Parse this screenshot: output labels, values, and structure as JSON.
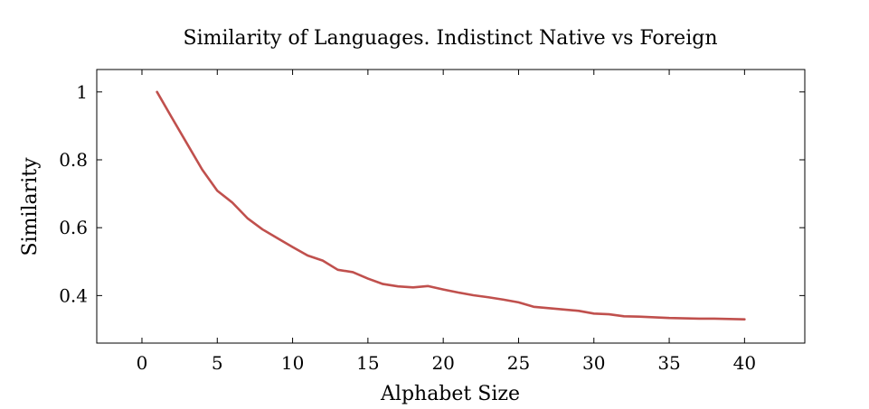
{
  "chart_data": {
    "type": "line",
    "title": "Similarity of Languages. Indistinct Native vs Foreign",
    "xlabel": "Alphabet Size",
    "ylabel": "Similarity",
    "xlim": [
      -3,
      44
    ],
    "ylim": [
      0.26,
      1.066
    ],
    "xticks": [
      0,
      5,
      10,
      15,
      20,
      25,
      30,
      35,
      40
    ],
    "xtick_labels": [
      "0",
      "5",
      "10",
      "15",
      "20",
      "25",
      "30",
      "35",
      "40"
    ],
    "yticks": [
      0.4,
      0.6,
      0.8,
      1.0
    ],
    "ytick_labels": [
      "0.4",
      "0.6",
      "0.8",
      "1"
    ],
    "grid": false,
    "series": [
      {
        "color": "#c0504d",
        "x": [
          1,
          2,
          3,
          4,
          5,
          6,
          7,
          8,
          9,
          10,
          11,
          12,
          13,
          14,
          15,
          16,
          17,
          18,
          19,
          20,
          21,
          22,
          23,
          24,
          25,
          26,
          27,
          28,
          29,
          30,
          31,
          32,
          33,
          34,
          35,
          36,
          37,
          38,
          39,
          40
        ],
        "y": [
          1.0,
          0.923,
          0.847,
          0.771,
          0.709,
          0.674,
          0.628,
          0.595,
          0.569,
          0.543,
          0.518,
          0.503,
          0.476,
          0.469,
          0.45,
          0.434,
          0.427,
          0.424,
          0.428,
          0.418,
          0.409,
          0.401,
          0.395,
          0.388,
          0.38,
          0.367,
          0.363,
          0.359,
          0.355,
          0.347,
          0.345,
          0.339,
          0.338,
          0.336,
          0.334,
          0.333,
          0.332,
          0.332,
          0.331,
          0.33
        ]
      }
    ]
  }
}
